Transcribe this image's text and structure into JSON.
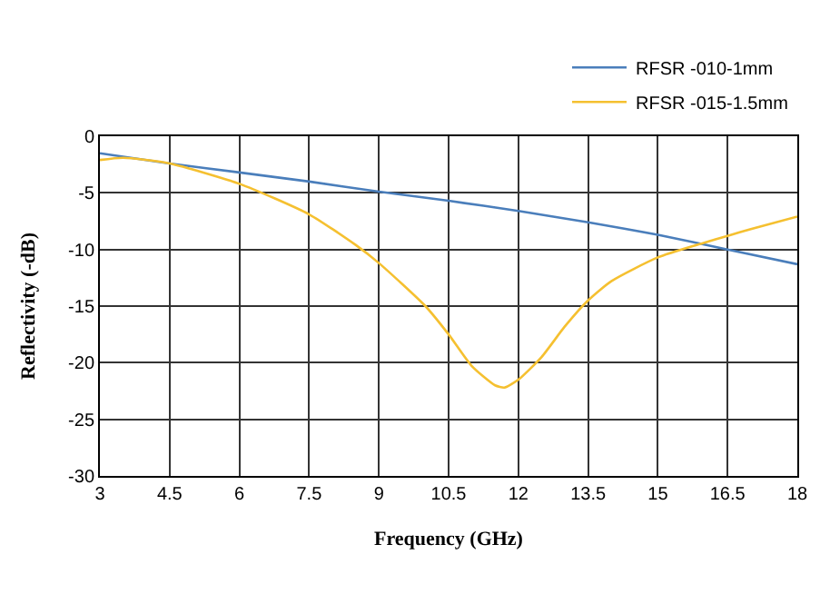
{
  "chart_data": {
    "type": "line",
    "xlabel": "Frequency (GHz)",
    "ylabel": "Reflectivity (-dB)",
    "xlim": [
      3,
      18
    ],
    "xticks": [
      3,
      4.5,
      6,
      7.5,
      9,
      10.5,
      12,
      13.5,
      15,
      16.5,
      18
    ],
    "ylim": [
      -30,
      0
    ],
    "yticks": [
      -30,
      -25,
      -20,
      -15,
      -10,
      -5,
      0
    ],
    "grid": true,
    "legend": "top right",
    "marker": "none",
    "line_style": "solid",
    "series": [
      {
        "name": "RFSR -010-1mm",
        "color": "#4a7ebb",
        "x": [
          3,
          4.5,
          6,
          7.5,
          9,
          10.5,
          12,
          13.5,
          15,
          16.5,
          18
        ],
        "values": [
          -1.5,
          -2.4,
          -3.2,
          -4.0,
          -4.9,
          -5.7,
          -6.6,
          -7.6,
          -8.7,
          -10.0,
          -11.3
        ]
      },
      {
        "name": "RFSR -015-1.5mm",
        "color": "#f5c030",
        "x": [
          3,
          3.5,
          4.5,
          6,
          7.5,
          8.5,
          9,
          10,
          10.5,
          11,
          11.5,
          11.7,
          12,
          12.5,
          13,
          13.5,
          14,
          15,
          16,
          16.5,
          17,
          18
        ],
        "values": [
          -2.1,
          -1.9,
          -2.4,
          -4.2,
          -6.9,
          -9.6,
          -11.2,
          -15.0,
          -17.5,
          -20.3,
          -22.0,
          -22.2,
          -21.5,
          -19.5,
          -16.8,
          -14.5,
          -12.8,
          -10.7,
          -9.4,
          -8.8,
          -8.2,
          -7.1
        ]
      }
    ]
  }
}
